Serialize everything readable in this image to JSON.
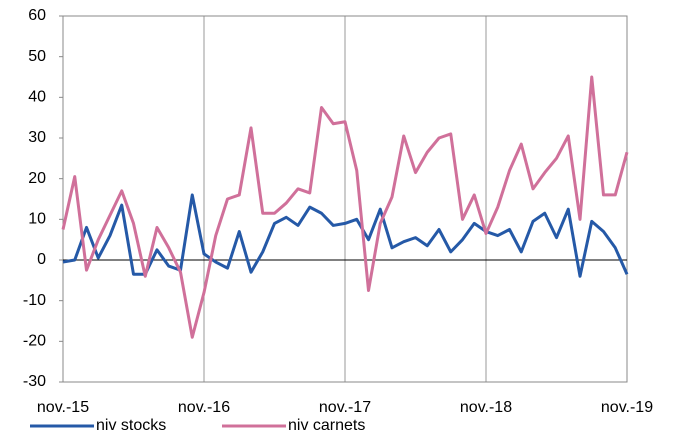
{
  "chart_data": {
    "type": "line",
    "categories": [
      "nov.-15",
      null,
      null,
      null,
      null,
      null,
      null,
      null,
      null,
      null,
      null,
      null,
      "nov.-16",
      null,
      null,
      null,
      null,
      null,
      null,
      null,
      null,
      null,
      null,
      null,
      "nov.-17",
      null,
      null,
      null,
      null,
      null,
      null,
      null,
      null,
      null,
      null,
      null,
      "nov.-18",
      null,
      null,
      null,
      null,
      null,
      null,
      null,
      null,
      null,
      null,
      null,
      "nov.-19"
    ],
    "series": [
      {
        "name": "niv stocks",
        "color": "#2559a7",
        "values": [
          -0.5,
          0,
          8,
          0.5,
          6,
          13.5,
          -3.5,
          -3.5,
          2.5,
          -1.5,
          -2.5,
          16,
          1.5,
          -0.5,
          -2,
          7,
          -3,
          2,
          9,
          10.5,
          8.5,
          13,
          11.5,
          8.5,
          9,
          10,
          5,
          12.5,
          3,
          4.5,
          5.5,
          3.5,
          7.5,
          2,
          5,
          9,
          7,
          6,
          7.5,
          2,
          9.5,
          11.5,
          5.5,
          12.5,
          -4,
          9.5,
          7,
          3,
          -3.5
        ]
      },
      {
        "name": "niv carnets",
        "color": "#d0709a",
        "values": [
          7.5,
          20.5,
          -2.5,
          5,
          11,
          17,
          9,
          -4,
          8,
          3,
          -3,
          -19,
          -8,
          6,
          15,
          16,
          32.5,
          11.5,
          11.5,
          14,
          17.5,
          16.5,
          37.5,
          33.5,
          34,
          22,
          -7.5,
          9,
          15.5,
          30.5,
          21.5,
          26.5,
          30,
          31,
          10,
          16,
          6.5,
          13,
          22,
          28.5,
          17.5,
          21.5,
          25,
          30.5,
          10,
          45,
          16,
          16,
          26.5
        ]
      }
    ],
    "ylim": [
      -30,
      60
    ],
    "yticks": [
      -30,
      -20,
      -10,
      0,
      10,
      20,
      30,
      40,
      50,
      60
    ],
    "legend": "bottom"
  }
}
